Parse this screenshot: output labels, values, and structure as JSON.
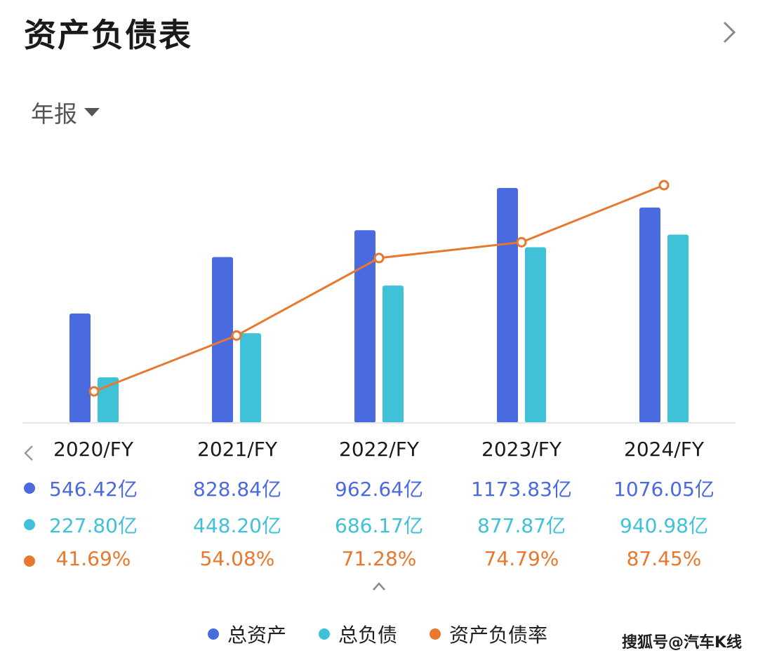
{
  "header": {
    "title": "资产负债表",
    "more_icon": "chevron-right-icon"
  },
  "period_selector": {
    "label": "年报",
    "icon": "caret-down-icon"
  },
  "colors": {
    "assets": "#4a6ae0",
    "liabilities": "#3fc2d8",
    "ratio": "#e7782e"
  },
  "chart_data": {
    "type": "bar",
    "categories": [
      "2020/FY",
      "2021/FY",
      "2022/FY",
      "2023/FY",
      "2024/FY"
    ],
    "series": [
      {
        "name": "总资产",
        "type": "bar",
        "values": [
          546.42,
          828.84,
          962.64,
          1173.83,
          1076.05
        ],
        "labels": [
          "546.42亿",
          "828.84亿",
          "962.64亿",
          "1173.83亿",
          "1076.05亿"
        ]
      },
      {
        "name": "总负债",
        "type": "bar",
        "values": [
          227.8,
          448.2,
          686.17,
          877.87,
          940.98
        ],
        "labels": [
          "227.80亿",
          "448.20亿",
          "686.17亿",
          "877.87亿",
          "940.98亿"
        ]
      },
      {
        "name": "资产负债率",
        "type": "line",
        "values": [
          41.69,
          54.08,
          71.28,
          74.79,
          87.45
        ],
        "labels": [
          "41.69%",
          "54.08%",
          "71.28%",
          "74.79%",
          "87.45%"
        ]
      }
    ],
    "legend_position": "bottom-center",
    "grid": false
  },
  "footer": {
    "collapse_icon": "chevron-up-icon",
    "watermark": "搜狐号@汽车K线"
  }
}
